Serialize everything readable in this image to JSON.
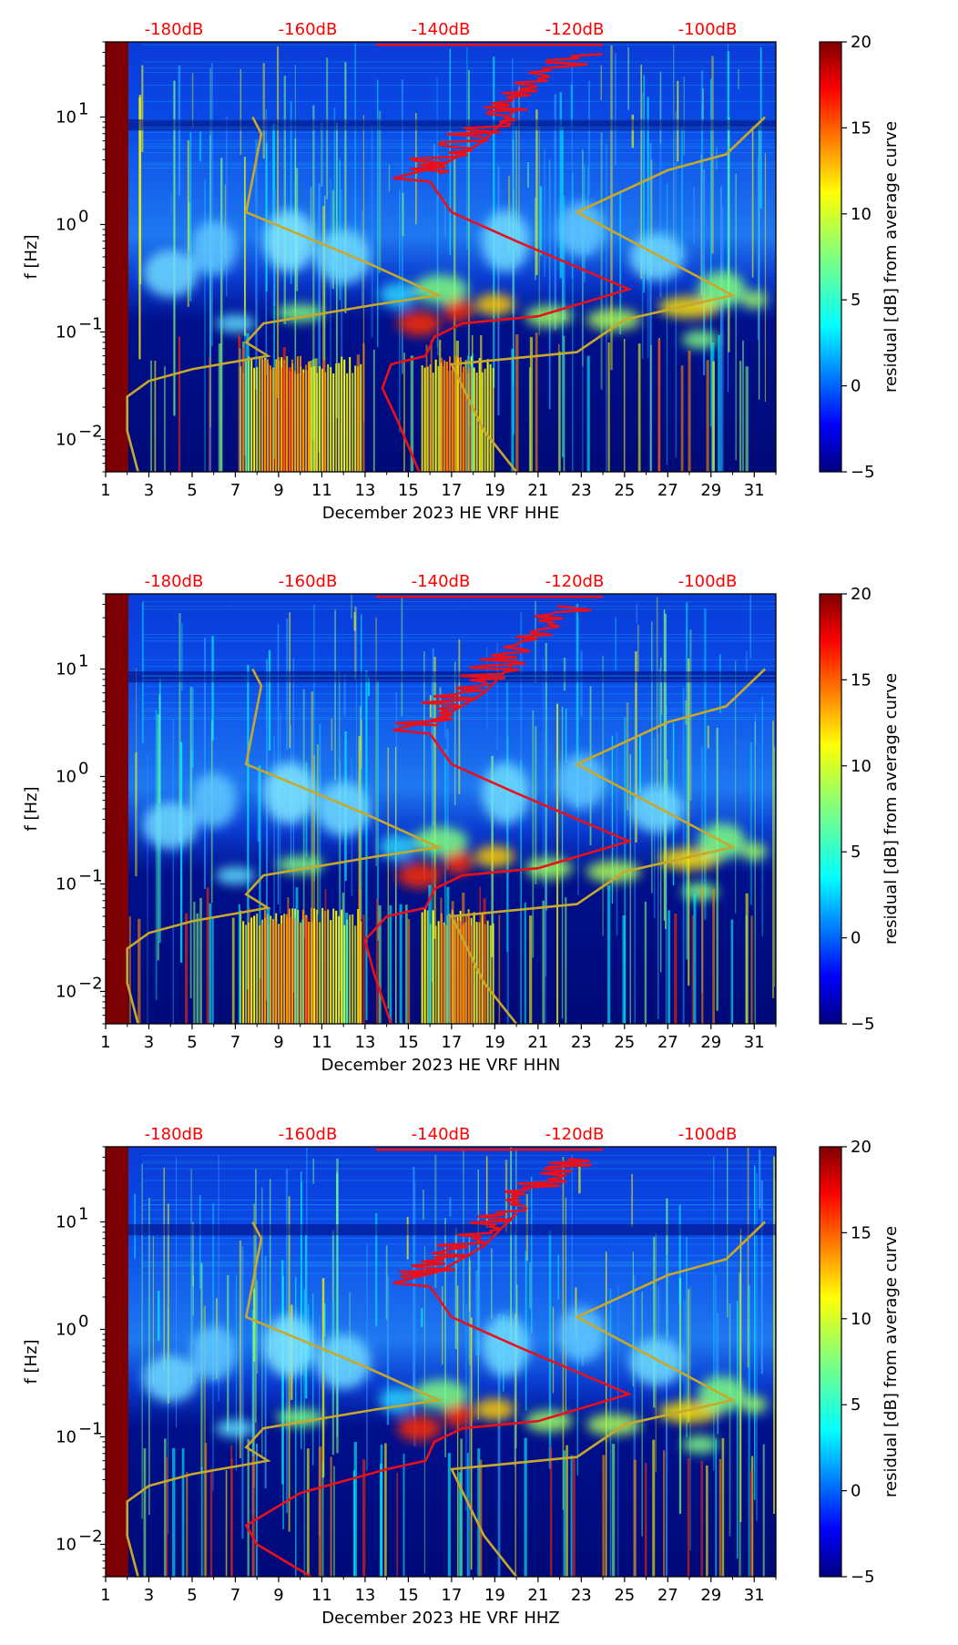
{
  "chart_data": [
    {
      "type": "heatmap",
      "xlabel": "December 2023 HE VRF  HHE",
      "ylabel": "f [Hz]",
      "x_ticks": [
        "1",
        "3",
        "5",
        "7",
        "9",
        "11",
        "13",
        "15",
        "17",
        "19",
        "21",
        "23",
        "25",
        "27",
        "29",
        "31"
      ],
      "y_ticks": [
        {
          "exp": "1",
          "value": 10
        },
        {
          "exp": "0",
          "value": 1
        },
        {
          "exp": "−1",
          "value": 0.1
        },
        {
          "exp": "−2",
          "value": 0.01
        }
      ],
      "ylim": [
        0.005,
        50
      ],
      "xlim": [
        1,
        32
      ],
      "top_db_labels": [
        "-180dB",
        "-160dB",
        "-140dB",
        "-120dB",
        "-100dB"
      ],
      "colorbar": {
        "label": "residual [dB] from average curve",
        "ticks": [
          "−5",
          "0",
          "5",
          "10",
          "15",
          "20"
        ],
        "range": [
          -5,
          20
        ]
      },
      "series": [
        {
          "name": "average PSD (red)",
          "color": "#e8101a"
        },
        {
          "name": "noise model (gold)",
          "color": "#c8a82a"
        }
      ]
    },
    {
      "type": "heatmap",
      "xlabel": "December 2023 HE VRF  HHN",
      "ylabel": "f [Hz]",
      "x_ticks": [
        "1",
        "3",
        "5",
        "7",
        "9",
        "11",
        "13",
        "15",
        "17",
        "19",
        "21",
        "23",
        "25",
        "27",
        "29",
        "31"
      ],
      "y_ticks": [
        {
          "exp": "1",
          "value": 10
        },
        {
          "exp": "0",
          "value": 1
        },
        {
          "exp": "−1",
          "value": 0.1
        },
        {
          "exp": "−2",
          "value": 0.01
        }
      ],
      "ylim": [
        0.005,
        50
      ],
      "xlim": [
        1,
        32
      ],
      "top_db_labels": [
        "-180dB",
        "-160dB",
        "-140dB",
        "-120dB",
        "-100dB"
      ],
      "colorbar": {
        "label": "residual [dB] from average curve",
        "ticks": [
          "−5",
          "0",
          "5",
          "10",
          "15",
          "20"
        ],
        "range": [
          -5,
          20
        ]
      },
      "series": [
        {
          "name": "average PSD (red)",
          "color": "#e8101a"
        },
        {
          "name": "noise model (gold)",
          "color": "#c8a82a"
        }
      ]
    },
    {
      "type": "heatmap",
      "xlabel": "December 2023 HE VRF  HHZ",
      "ylabel": "f [Hz]",
      "x_ticks": [
        "1",
        "3",
        "5",
        "7",
        "9",
        "11",
        "13",
        "15",
        "17",
        "19",
        "21",
        "23",
        "25",
        "27",
        "29",
        "31"
      ],
      "y_ticks": [
        {
          "exp": "1",
          "value": 10
        },
        {
          "exp": "0",
          "value": 1
        },
        {
          "exp": "−1",
          "value": 0.1
        },
        {
          "exp": "−2",
          "value": 0.01
        }
      ],
      "ylim": [
        0.005,
        50
      ],
      "xlim": [
        1,
        32
      ],
      "top_db_labels": [
        "-180dB",
        "-160dB",
        "-140dB",
        "-120dB",
        "-100dB"
      ],
      "colorbar": {
        "label": "residual [dB] from average curve",
        "ticks": [
          "−5",
          "0",
          "5",
          "10",
          "15",
          "20"
        ],
        "range": [
          -5,
          20
        ]
      },
      "series": [
        {
          "name": "average PSD (red)",
          "color": "#e8101a"
        },
        {
          "name": "noise model (gold)",
          "color": "#c8a82a"
        }
      ]
    }
  ],
  "colors": {
    "text": "#000000",
    "db_label": "#ff0000",
    "psd_line": "#e8101a",
    "model_line": "#c8a82a",
    "jet": [
      "#00007f",
      "#0000ff",
      "#007fff",
      "#00ffff",
      "#7fff7f",
      "#ffff00",
      "#ff7f00",
      "#ff0000",
      "#7f0000"
    ]
  }
}
